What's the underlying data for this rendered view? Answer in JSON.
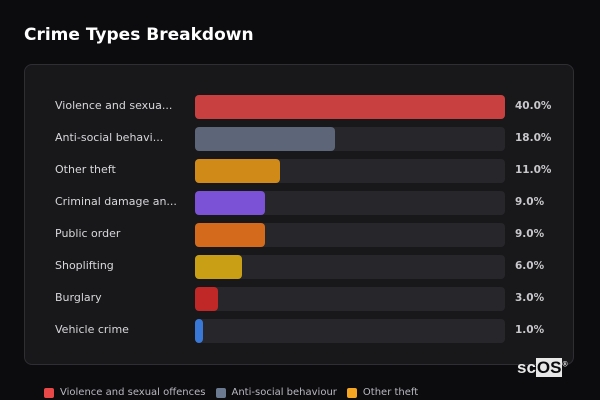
{
  "chart_data": {
    "type": "bar",
    "orientation": "horizontal",
    "title": "Crime Types Breakdown",
    "categories": [
      "Violence and sexua...",
      "Anti-social behavi...",
      "Other theft",
      "Criminal damage an...",
      "Public order",
      "Shoplifting",
      "Burglary",
      "Vehicle crime"
    ],
    "values": [
      40.0,
      18.0,
      11.0,
      9.0,
      9.0,
      6.0,
      3.0,
      1.0
    ],
    "value_labels": [
      "40.0%",
      "18.0%",
      "11.0%",
      "9.0%",
      "9.0%",
      "6.0%",
      "3.0%",
      "1.0%"
    ],
    "colors": [
      "#c94040",
      "#5c6678",
      "#d08a18",
      "#7b52d6",
      "#d46a1c",
      "#c9a015",
      "#c02828",
      "#3a78d8"
    ],
    "unit": "%",
    "xlim": [
      0,
      40
    ],
    "grid": false,
    "legend_position": "bottom",
    "legend": [
      {
        "label": "Violence and sexual offences",
        "color": "#e84848"
      },
      {
        "label": "Anti-social behaviour",
        "color": "#6b7a90"
      },
      {
        "label": "Other theft",
        "color": "#f5a623"
      }
    ]
  },
  "logo": {
    "text": "scOS",
    "prefix": "sc",
    "boxed": "OS",
    "mark": "®"
  }
}
